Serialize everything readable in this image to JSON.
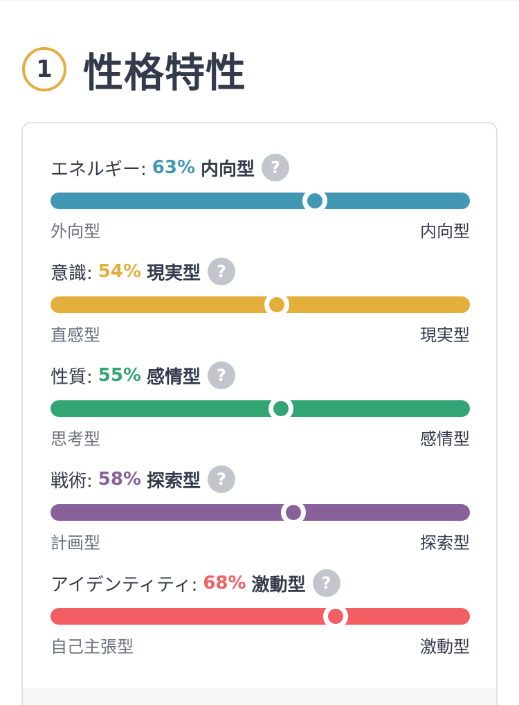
{
  "section": {
    "number": "1",
    "title": "性格特性"
  },
  "help_glyph": "?",
  "traits": [
    {
      "name": "エネルギー:",
      "percent_label": "63%",
      "type_label": "内向型",
      "left_pole": "外向型",
      "right_pole": "内向型",
      "color": "#4298b4",
      "knob_position_percent": 63
    },
    {
      "name": "意識:",
      "percent_label": "54%",
      "type_label": "現実型",
      "left_pole": "直感型",
      "right_pole": "現実型",
      "color": "#e4ae3a",
      "knob_position_percent": 54
    },
    {
      "name": "性質:",
      "percent_label": "55%",
      "type_label": "感情型",
      "left_pole": "思考型",
      "right_pole": "感情型",
      "color": "#33a474",
      "knob_position_percent": 55
    },
    {
      "name": "戦術:",
      "percent_label": "58%",
      "type_label": "探索型",
      "left_pole": "計画型",
      "right_pole": "探索型",
      "color": "#88619a",
      "knob_position_percent": 58
    },
    {
      "name": "アイデンティティ:",
      "percent_label": "68%",
      "type_label": "激動型",
      "left_pole": "自己主張型",
      "right_pole": "激動型",
      "color": "#f25e62",
      "knob_position_percent": 68
    }
  ]
}
